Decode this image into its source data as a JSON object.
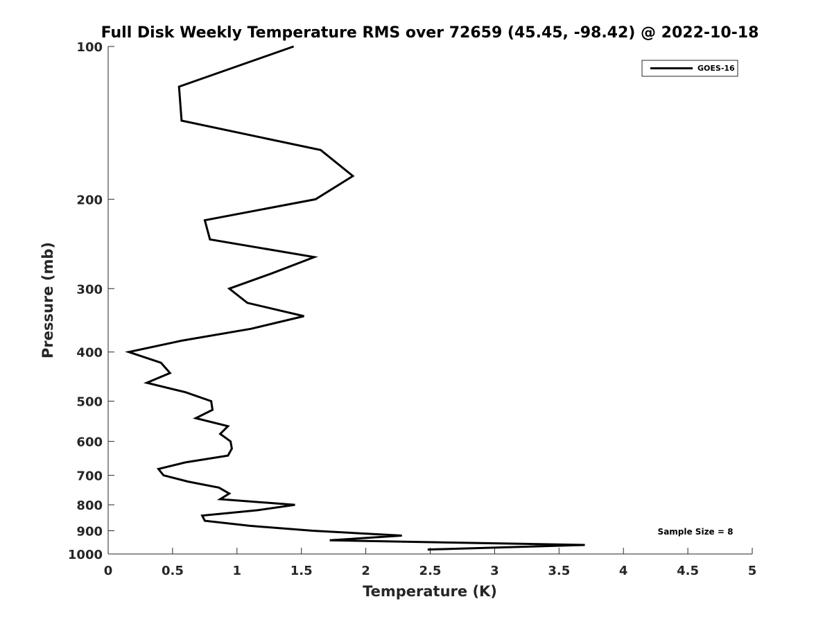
{
  "chart_data": {
    "type": "line",
    "title": "Full Disk Weekly Temperature RMS over 72659 (45.45, -98.42) @ 2022-10-18",
    "xlabel": "Temperature (K)",
    "ylabel": "Pressure (mb)",
    "xlim": [
      0,
      5
    ],
    "ylim": [
      100,
      1000
    ],
    "yscale": "log",
    "yreversed": true,
    "grid": false,
    "xticks": [
      "0",
      "0.5",
      "1",
      "1.5",
      "2",
      "2.5",
      "3",
      "3.5",
      "4",
      "4.5",
      "5"
    ],
    "xtick_values": [
      0,
      0.5,
      1,
      1.5,
      2,
      2.5,
      3,
      3.5,
      4,
      4.5,
      5
    ],
    "yticks": [
      "100",
      "200",
      "300",
      "400",
      "500",
      "600",
      "700",
      "800",
      "900",
      "1000"
    ],
    "ytick_values": [
      100,
      200,
      300,
      400,
      500,
      600,
      700,
      800,
      900,
      1000
    ],
    "legend": {
      "placement": "top-right",
      "entries": [
        "GOES-16"
      ]
    },
    "annotation": "Sample Size = 8",
    "series": [
      {
        "name": "GOES-16",
        "color": "#000000",
        "pressure": [
          100,
          120,
          140,
          160,
          180,
          200,
          220,
          240,
          260,
          280,
          300,
          320,
          340,
          360,
          380,
          400,
          420,
          440,
          460,
          480,
          500,
          520,
          540,
          560,
          580,
          600,
          620,
          640,
          660,
          680,
          700,
          720,
          740,
          760,
          780,
          800,
          820,
          840,
          860,
          880,
          900,
          920,
          940,
          960,
          980
        ],
        "temperature": [
          1.44,
          0.55,
          0.57,
          1.65,
          1.9,
          1.61,
          0.75,
          0.79,
          1.6,
          1.27,
          0.94,
          1.08,
          1.52,
          1.11,
          0.57,
          0.16,
          0.41,
          0.48,
          0.3,
          0.6,
          0.8,
          0.81,
          0.68,
          0.93,
          0.87,
          0.95,
          0.96,
          0.93,
          0.6,
          0.39,
          0.43,
          0.62,
          0.86,
          0.94,
          0.87,
          1.45,
          1.16,
          0.73,
          0.75,
          1.1,
          1.59,
          2.28,
          1.72,
          3.7,
          2.48
        ]
      }
    ]
  }
}
